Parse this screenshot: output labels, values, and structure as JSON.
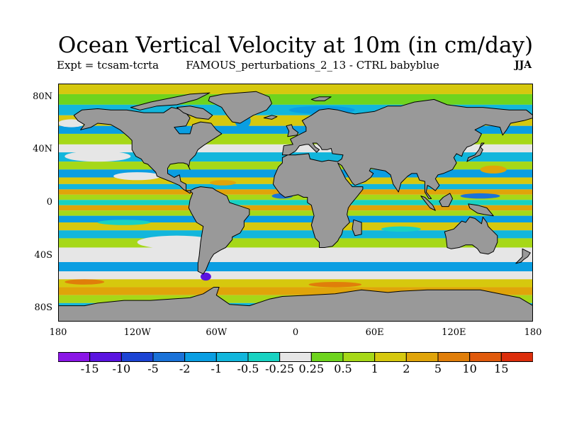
{
  "title": "Ocean Vertical Velocity at 10m (in cm/day)",
  "subtitle_left": "Expt = tcsam-tcrta",
  "subtitle_center": "FAMOUS_perturbations_2_13 - CTRL babyblue",
  "season": "JJA",
  "map": {
    "projection": "cylindrical-equidistant",
    "lon_range": [
      -180,
      180
    ],
    "lat_range": [
      -90,
      90
    ],
    "ocean_field": "vertical velocity anomaly",
    "land_color": "#999999",
    "coast_color": "#000000"
  },
  "lat_labels": [
    {
      "text": "80N",
      "lat": 80
    },
    {
      "text": "40N",
      "lat": 40
    },
    {
      "text": "0",
      "lat": 0
    },
    {
      "text": "40S",
      "lat": -40
    },
    {
      "text": "80S",
      "lat": -80
    }
  ],
  "lon_labels": [
    {
      "text": "180",
      "lon": -180
    },
    {
      "text": "120W",
      "lon": -120
    },
    {
      "text": "60W",
      "lon": -60
    },
    {
      "text": "0",
      "lon": 0
    },
    {
      "text": "60E",
      "lon": 60
    },
    {
      "text": "120E",
      "lon": 120
    },
    {
      "text": "180",
      "lon": 180
    }
  ],
  "colorbar": {
    "labels": [
      "-15",
      "-10",
      "-5",
      "-2",
      "-1",
      "-0.5",
      "-0.25",
      "0.25",
      "0.5",
      "1",
      "2",
      "5",
      "10",
      "15"
    ],
    "colors": [
      "#8a16e6",
      "#5a14e0",
      "#1c44d4",
      "#1a72d8",
      "#0a9ee2",
      "#12b6dc",
      "#18d2c2",
      "#e6e6e6",
      "#6ed41e",
      "#a6d818",
      "#d6c80e",
      "#e0a40a",
      "#e07e0a",
      "#e05a0c",
      "#dc2e0c"
    ]
  }
}
